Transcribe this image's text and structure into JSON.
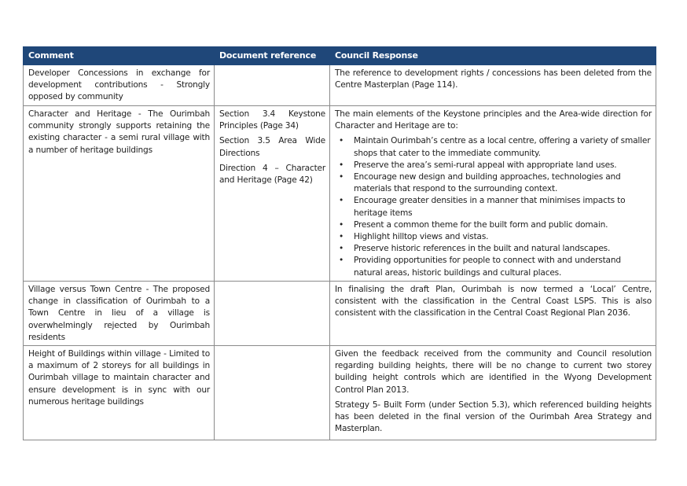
{
  "headers": {
    "comment": "Comment",
    "reference": "Document reference",
    "response": "Council Response"
  },
  "rows": [
    {
      "comment": "Developer Concessions in exchange for development contributions - Strongly opposed by community",
      "references": [],
      "response_paragraphs": [
        "The reference to development rights / concessions has been deleted from the Centre Masterplan (Page 114)."
      ],
      "bullets": []
    },
    {
      "comment": "Character and Heritage - The Ourimbah community strongly supports retaining the existing character -  a semi rural village with a number of heritage buildings",
      "references": [
        "Section 3.4 Keystone Principles (Page 34)",
        "Section 3.5 Area Wide Directions",
        "Direction 4 – Character and Heritage (Page 42)"
      ],
      "response_paragraphs": [
        "The main elements of the Keystone principles and the Area-wide direction for Character and Heritage are to:"
      ],
      "bullets": [
        "Maintain Ourimbah’s centre as a local centre, offering a variety of smaller shops that cater to the immediate community.",
        "Preserve the area’s semi-rural appeal with appropriate land uses.",
        "Encourage new design and building approaches, technologies and materials that respond to the surrounding context.",
        "Encourage greater densities in a manner that minimises impacts to heritage items",
        "Present a common theme for the built form and public domain.",
        "Highlight hilltop views and vistas.",
        "Preserve historic references in the built and natural landscapes.",
        "Providing opportunities for people to connect with and understand natural areas, historic buildings and cultural places."
      ]
    },
    {
      "comment": "Village versus Town Centre - The proposed change in classification of Ourimbah to a Town Centre in lieu of a village is overwhelmingly rejected by Ourimbah residents",
      "references": [],
      "response_paragraphs": [
        "In finalising the draft Plan, Ourimbah is now termed a ‘Local’ Centre, consistent with the classification in the Central Coast LSPS. This is also consistent with the classification in the Central Coast Regional Plan 2036."
      ],
      "bullets": []
    },
    {
      "comment": "Height of Buildings within village - Limited to a maximum of 2 storeys for all buildings in Ourimbah village to maintain character and ensure development is in sync with our numerous heritage buildings",
      "references": [],
      "response_paragraphs": [
        "Given the feedback received from the community and Council resolution regarding building heights, there will be no change to current two storey building height controls which are identified in the Wyong Development Control Plan 2013.",
        "Strategy 5- Built Form (under Section 5.3), which referenced building heights has been deleted in the final version of the Ourimbah Area Strategy and Masterplan."
      ],
      "bullets": []
    }
  ]
}
